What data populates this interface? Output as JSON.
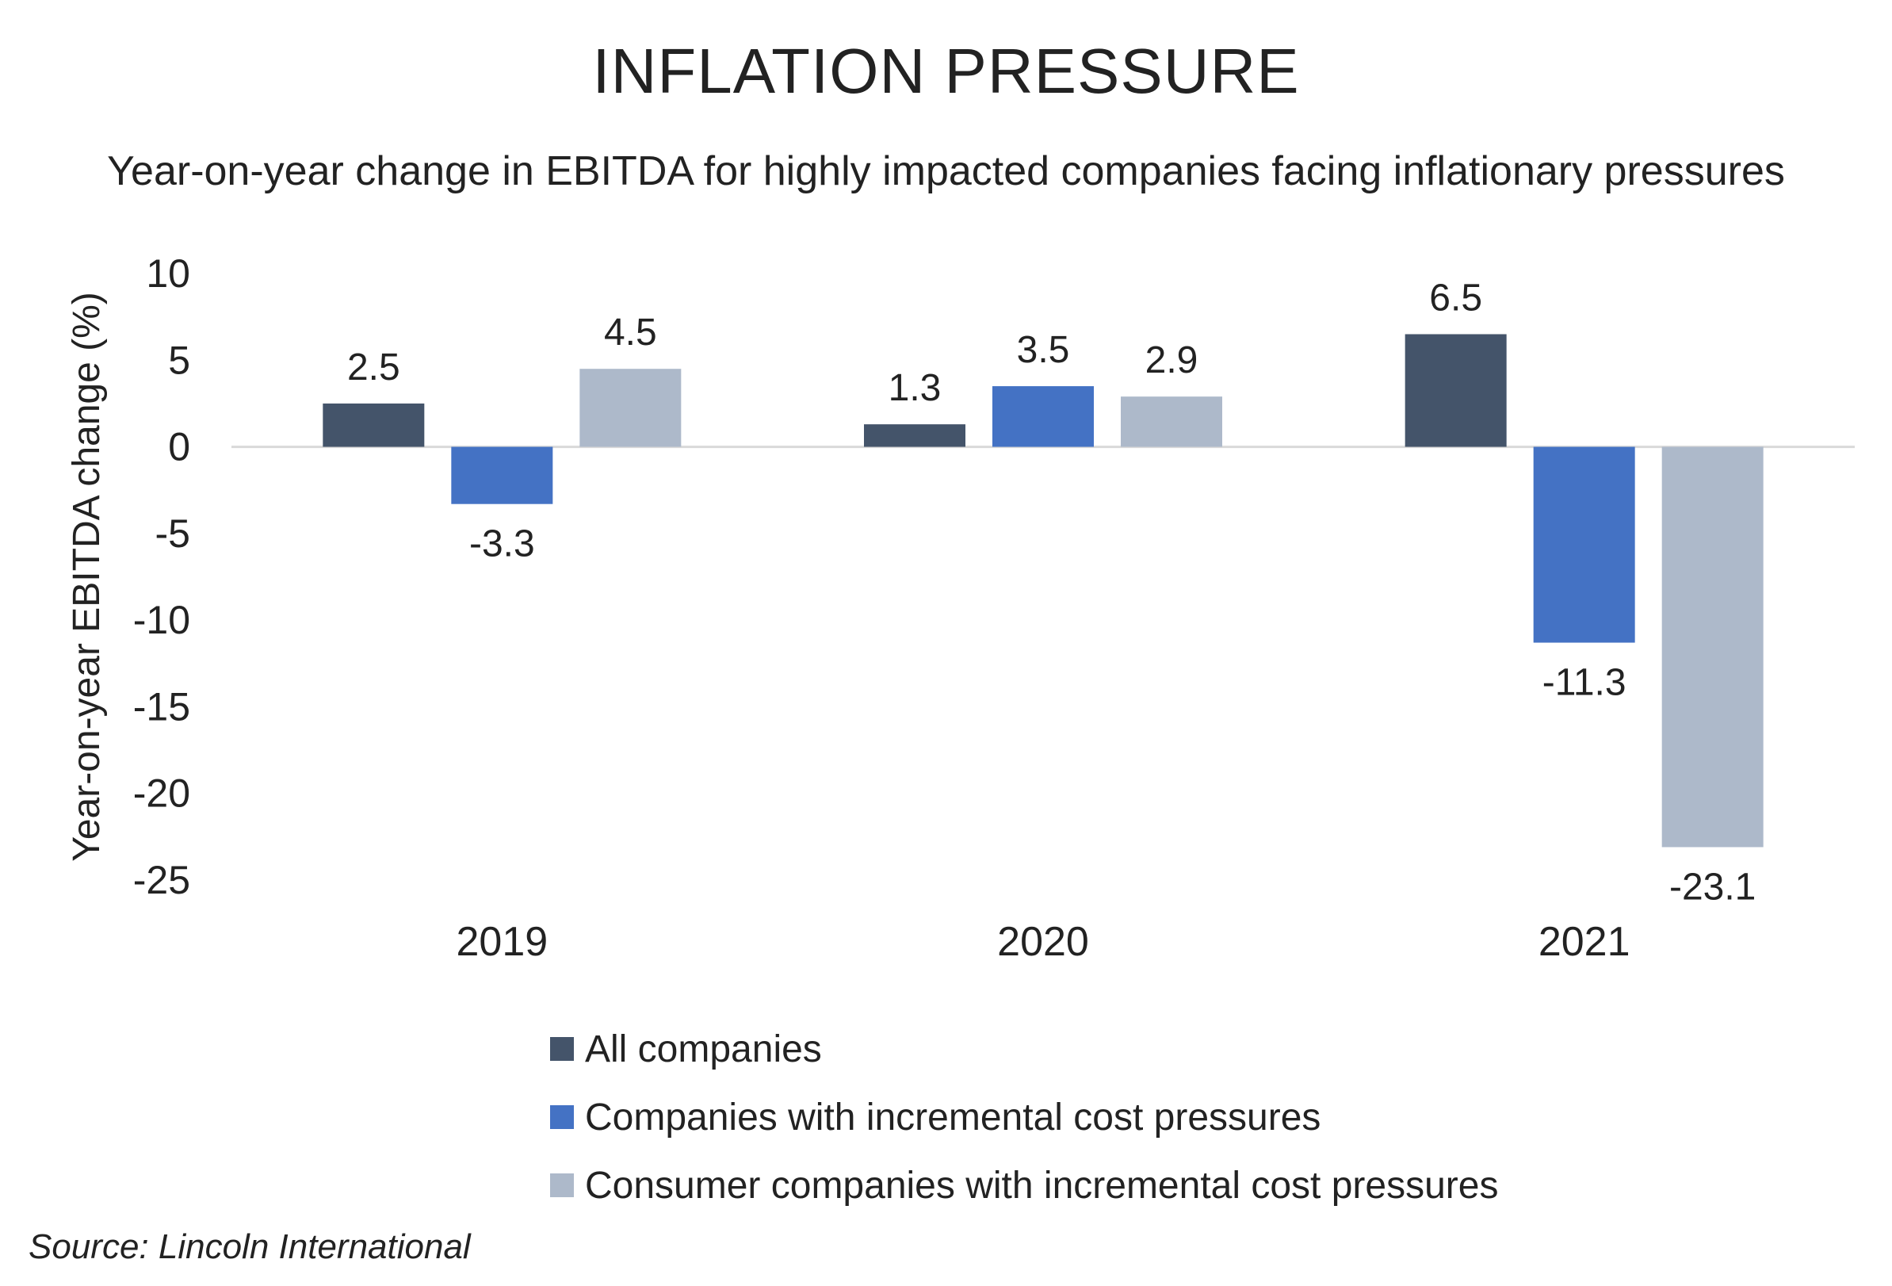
{
  "title": "INFLATION PRESSURE",
  "subtitle": "Year-on-year change in EBITDA for highly impacted companies facing inflationary pressures",
  "source": "Source: Lincoln International",
  "chart_data": {
    "type": "bar",
    "title": "INFLATION PRESSURE",
    "subtitle": "Year-on-year change in EBITDA for highly impacted companies facing inflationary pressures",
    "xlabel": "",
    "ylabel": "Year-on-year EBITDA change (%)",
    "ylim": [
      -25,
      10
    ],
    "yticks": [
      10,
      5,
      0,
      -5,
      -10,
      -15,
      -20,
      -25
    ],
    "categories": [
      "2019",
      "2020",
      "2021"
    ],
    "series": [
      {
        "name": "All companies",
        "color": "#44546A",
        "values": [
          2.5,
          1.3,
          6.5
        ],
        "labels": [
          "2.5",
          "1.3",
          "6.5"
        ]
      },
      {
        "name": "Companies with incremental cost pressures",
        "color": "#4472C4",
        "values": [
          -3.3,
          3.5,
          -11.3
        ],
        "labels": [
          "-3.3",
          "3.5",
          "-11.3"
        ]
      },
      {
        "name": "Consumer companies with incremental cost pressures",
        "color": "#ADB9CA",
        "values": [
          4.5,
          2.9,
          -23.1
        ],
        "labels": [
          "4.5",
          "2.9",
          "-23.1"
        ]
      }
    ],
    "grid": false,
    "legend_position": "bottom"
  }
}
